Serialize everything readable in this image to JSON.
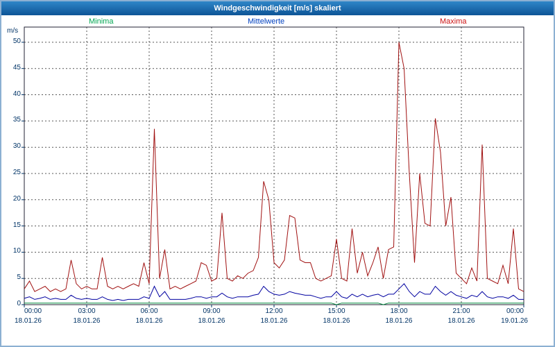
{
  "header": {
    "title": "Windgeschwindigkeit [m/s] skaliert"
  },
  "colors": {
    "titlebar_start": "#2f86c8",
    "titlebar_end": "#0d5496",
    "frame": "#8cb0d2",
    "tick_label": "#003366",
    "grid": "#555555",
    "plot_border": "#222233",
    "background": "#ffffff"
  },
  "chart_data": {
    "type": "line",
    "title": "Windgeschwindigkeit [m/s] skaliert",
    "ylabel": "m/s",
    "xlabel": "",
    "ylim": [
      0,
      50
    ],
    "y_ticks": [
      0,
      5,
      10,
      15,
      20,
      25,
      30,
      35,
      40,
      45,
      50
    ],
    "grid": true,
    "legend_position": "top",
    "x_step_minutes": 15,
    "x_range_minutes": [
      0,
      1440
    ],
    "x_ticks": [
      {
        "time": "00:00",
        "date": "18.01.26"
      },
      {
        "time": "03:00",
        "date": "18.01.26"
      },
      {
        "time": "06:00",
        "date": "18.01.26"
      },
      {
        "time": "09:00",
        "date": "18.01.26"
      },
      {
        "time": "12:00",
        "date": "18.01.26"
      },
      {
        "time": "15:00",
        "date": "18.01.26"
      },
      {
        "time": "18:00",
        "date": "18.01.26"
      },
      {
        "time": "21:00",
        "date": "18.01.26"
      },
      {
        "time": "00:00",
        "date": "19.01.26"
      }
    ],
    "series": [
      {
        "name": "Minima",
        "label_color": "#00a651",
        "line_color": "#008a3e",
        "values": [
          0.3,
          0.3,
          0.3,
          0.3,
          0.3,
          0.3,
          0.3,
          0.3,
          0.3,
          0.3,
          0.3,
          0.3,
          0.3,
          0.3,
          0.3,
          0.3,
          0.3,
          0.3,
          0.3,
          0.3,
          0.3,
          0.3,
          0.3,
          0.3,
          0.3,
          0.3,
          0.3,
          0.3,
          0.3,
          0.3,
          0.3,
          0.3,
          0.3,
          0.3,
          0.3,
          0.3,
          0.3,
          0.3,
          0.3,
          0.3,
          0.3,
          0.3,
          0.3,
          0.3,
          0.3,
          0.3,
          0.3,
          0.3,
          0.3,
          0.3,
          0.3,
          0.3,
          0.3,
          0.3,
          0.3,
          0.3,
          0.3,
          0.3,
          0.3,
          0.3,
          0,
          0.3,
          0.3,
          0.3,
          0.3,
          0.3,
          0.3,
          0.3,
          0.3,
          0,
          0.3,
          0.3,
          0.3,
          0.3,
          0.3,
          0.3,
          0.3,
          0.3,
          0.3,
          0.3,
          0.3,
          0.3,
          0.3,
          0.3,
          0.3,
          0.3,
          0.3,
          0.3,
          0.3,
          0.3,
          0.3,
          0.3,
          0.3,
          0.3,
          0.3,
          0.3,
          0.3
        ]
      },
      {
        "name": "Mittelwerte",
        "label_color": "#0040c0",
        "line_color": "#0000a0",
        "values": [
          1.2,
          1.5,
          1,
          1.2,
          1.5,
          1,
          1.2,
          1,
          1,
          1.8,
          1.2,
          1,
          1.2,
          1,
          1,
          1.5,
          1,
          0.8,
          1,
          0.8,
          1,
          1,
          1,
          1.5,
          1.2,
          3.5,
          1.5,
          2.5,
          1,
          1,
          1,
          1,
          1.2,
          1.5,
          1.5,
          1.2,
          1.5,
          1.5,
          2.2,
          1.5,
          1.2,
          1.5,
          1.5,
          1.5,
          1.8,
          2,
          3.5,
          2.5,
          2,
          1.8,
          2,
          2.5,
          2.2,
          2,
          1.8,
          1.8,
          1.5,
          1.2,
          1.5,
          1.5,
          2.5,
          1.5,
          1.2,
          2,
          1.5,
          2,
          1.5,
          1.8,
          2,
          1.5,
          2,
          2,
          3,
          4,
          2.5,
          1.5,
          2.5,
          2,
          2,
          3.5,
          2.5,
          1.8,
          2.5,
          1.8,
          1.5,
          1.2,
          1.8,
          1.5,
          2.5,
          1.5,
          1.2,
          1.5,
          1.5,
          1.2,
          1.8,
          1,
          1
        ]
      },
      {
        "name": "Maxima",
        "label_color": "#cc1111",
        "line_color": "#a01010",
        "values": [
          3,
          4.5,
          2.5,
          3,
          3.5,
          2.5,
          3,
          2.5,
          3,
          8.5,
          4,
          3,
          3.5,
          3,
          3,
          9,
          3.5,
          3,
          3.5,
          3,
          3.5,
          4,
          3.5,
          8,
          4,
          33.5,
          5,
          10.5,
          3,
          3.5,
          3,
          3.5,
          4,
          4.5,
          8,
          7.5,
          4.5,
          5,
          17.5,
          5,
          4.5,
          5.5,
          5,
          6,
          6.5,
          9,
          23.5,
          20,
          8,
          7,
          8.5,
          17,
          16.5,
          8.5,
          8,
          8,
          5,
          4.5,
          5,
          5.5,
          12.5,
          5,
          4.5,
          14.5,
          6,
          10,
          5.5,
          8,
          11,
          5,
          10.5,
          11,
          50,
          45,
          25,
          8,
          25,
          15.5,
          15,
          35.5,
          29,
          15,
          20.5,
          6,
          5,
          4,
          7,
          4.5,
          30.5,
          5,
          4.5,
          4,
          7.5,
          4,
          14.5,
          3,
          2.5
        ]
      }
    ]
  }
}
